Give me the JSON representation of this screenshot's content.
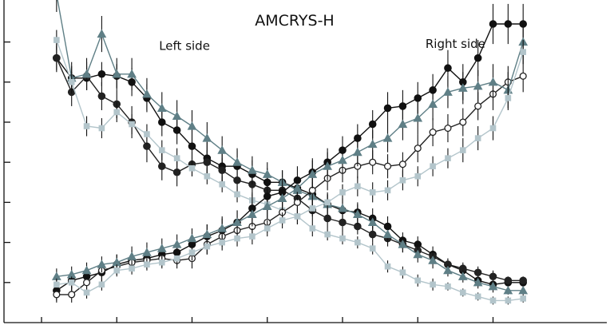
{
  "chart_data": {
    "type": "line",
    "title": "AMCRYS-H",
    "xlabel": "",
    "ylabel": "",
    "grid": false,
    "legend": "none",
    "error_bars": true,
    "x": [
      1,
      2,
      3,
      4,
      5,
      6,
      7,
      8,
      9,
      10,
      11,
      12,
      13,
      14,
      15,
      16,
      17,
      18,
      19,
      20,
      21,
      22,
      23,
      24,
      25,
      26,
      27,
      28,
      29,
      30,
      31,
      32
    ],
    "xlim": [
      -0.5,
      33.5
    ],
    "ylim": [
      0,
      8
    ],
    "x_tick_positions": [
      0,
      5,
      10,
      15,
      20,
      25,
      30
    ],
    "y_tick_positions": [
      1,
      2,
      3,
      4,
      5,
      6,
      7
    ],
    "annotations": [
      {
        "text": "Left side",
        "x": 9.5,
        "y": 6.8
      },
      {
        "text": "Right side",
        "x": 27.5,
        "y": 6.85
      }
    ],
    "series": [
      {
        "side": "left",
        "marker": "filled-circle",
        "color": "#111111",
        "values": [
          6.6,
          6.1,
          6.1,
          6.2,
          6.15,
          6.0,
          5.6,
          5.0,
          4.8,
          4.4,
          4.1,
          3.9,
          3.9,
          3.7,
          3.5,
          3.5,
          3.35,
          3.2,
          2.95,
          2.8,
          2.75,
          2.6,
          2.4,
          2.05,
          1.95,
          1.7,
          1.45,
          1.3,
          1.05,
          0.95,
          1.0,
          1.0
        ],
        "errors": [
          0.3,
          0.3,
          0.3,
          0.3,
          0.3,
          0.35,
          0.35,
          0.35,
          0.35,
          0.4,
          0.4,
          0.4,
          0.4,
          0.35,
          0.35,
          0.3,
          0.3,
          0.3,
          0.3,
          0.25,
          0.25,
          0.25,
          0.25,
          0.2,
          0.2,
          0.2,
          0.15,
          0.15,
          0.15,
          0.1,
          0.1,
          0.1
        ]
      },
      {
        "side": "left",
        "marker": "filled-circle",
        "color": "#222222",
        "values": [
          6.6,
          5.75,
          6.15,
          5.65,
          5.45,
          5.0,
          4.4,
          3.9,
          3.75,
          3.95,
          4.0,
          3.8,
          3.55,
          3.45,
          3.3,
          3.3,
          3.1,
          2.8,
          2.6,
          2.5,
          2.4,
          2.2,
          2.1,
          1.95,
          1.8,
          1.65,
          1.45,
          1.35,
          1.25,
          1.15,
          1.05,
          1.05
        ],
        "errors": [
          0.35,
          0.35,
          0.35,
          0.35,
          0.35,
          0.4,
          0.4,
          0.35,
          0.35,
          0.3,
          0.3,
          0.3,
          0.3,
          0.3,
          0.3,
          0.3,
          0.25,
          0.25,
          0.25,
          0.25,
          0.2,
          0.2,
          0.2,
          0.2,
          0.2,
          0.15,
          0.15,
          0.15,
          0.15,
          0.15,
          0.1,
          0.1
        ]
      },
      {
        "side": "left",
        "marker": "triangle",
        "color": "#5f7f86",
        "values": [
          8.2,
          6.1,
          6.2,
          7.2,
          6.2,
          6.2,
          5.7,
          5.35,
          5.15,
          4.9,
          4.6,
          4.3,
          4.0,
          3.8,
          3.7,
          3.5,
          3.3,
          3.15,
          2.95,
          2.85,
          2.7,
          2.5,
          2.2,
          1.95,
          1.7,
          1.55,
          1.3,
          1.15,
          1.0,
          0.9,
          0.8,
          0.8
        ],
        "errors": [
          0.45,
          0.4,
          0.4,
          0.45,
          0.4,
          0.4,
          0.4,
          0.4,
          0.4,
          0.4,
          0.4,
          0.35,
          0.35,
          0.35,
          0.3,
          0.3,
          0.3,
          0.25,
          0.25,
          0.25,
          0.25,
          0.2,
          0.2,
          0.2,
          0.2,
          0.2,
          0.15,
          0.15,
          0.15,
          0.15,
          0.1,
          0.1
        ]
      },
      {
        "side": "left",
        "marker": "square",
        "color": "#b3c5cb",
        "values": [
          7.05,
          6.0,
          4.9,
          4.85,
          5.25,
          4.95,
          4.7,
          4.3,
          4.1,
          3.85,
          3.65,
          3.45,
          3.2,
          3.05,
          2.95,
          2.8,
          2.65,
          2.35,
          2.2,
          2.1,
          2.0,
          1.85,
          1.4,
          1.25,
          1.05,
          0.95,
          0.9,
          0.75,
          0.65,
          0.55,
          0.55,
          0.6
        ],
        "errors": [
          0.25,
          0.25,
          0.25,
          0.25,
          0.25,
          0.25,
          0.25,
          0.25,
          0.25,
          0.2,
          0.2,
          0.2,
          0.2,
          0.2,
          0.2,
          0.2,
          0.2,
          0.2,
          0.15,
          0.15,
          0.15,
          0.15,
          0.15,
          0.15,
          0.15,
          0.15,
          0.1,
          0.1,
          0.1,
          0.1,
          0.1,
          0.1
        ]
      },
      {
        "side": "right",
        "marker": "filled-circle",
        "color": "#111111",
        "values": [
          0.8,
          1.05,
          1.15,
          1.25,
          1.45,
          1.55,
          1.6,
          1.7,
          1.75,
          1.95,
          2.15,
          2.3,
          2.5,
          2.85,
          3.15,
          3.25,
          3.55,
          3.75,
          4.0,
          4.3,
          4.6,
          4.95,
          5.35,
          5.4,
          5.6,
          5.8,
          6.35,
          6.0,
          6.6,
          7.45,
          7.45,
          7.45
        ],
        "errors": [
          0.25,
          0.25,
          0.25,
          0.25,
          0.25,
          0.25,
          0.25,
          0.25,
          0.3,
          0.3,
          0.3,
          0.3,
          0.3,
          0.35,
          0.35,
          0.35,
          0.35,
          0.35,
          0.35,
          0.35,
          0.35,
          0.35,
          0.4,
          0.4,
          0.4,
          0.4,
          0.45,
          0.45,
          0.45,
          0.5,
          0.5,
          0.5
        ]
      },
      {
        "side": "right",
        "marker": "open-circle",
        "color": "#222222",
        "values": [
          0.7,
          0.7,
          1.0,
          1.3,
          1.4,
          1.5,
          1.55,
          1.6,
          1.55,
          1.6,
          1.95,
          2.15,
          2.3,
          2.4,
          2.5,
          2.75,
          3.0,
          3.3,
          3.6,
          3.8,
          3.9,
          4.0,
          3.9,
          3.95,
          4.35,
          4.75,
          4.85,
          5.0,
          5.4,
          5.7,
          6.0,
          6.15
        ],
        "errors": [
          0.2,
          0.2,
          0.2,
          0.2,
          0.2,
          0.2,
          0.2,
          0.2,
          0.2,
          0.25,
          0.25,
          0.25,
          0.25,
          0.25,
          0.25,
          0.3,
          0.3,
          0.3,
          0.3,
          0.3,
          0.3,
          0.3,
          0.3,
          0.3,
          0.35,
          0.35,
          0.35,
          0.35,
          0.35,
          0.4,
          0.4,
          0.4
        ]
      },
      {
        "side": "right",
        "marker": "triangle",
        "color": "#5f7f86",
        "values": [
          1.15,
          1.2,
          1.3,
          1.45,
          1.5,
          1.65,
          1.75,
          1.85,
          1.95,
          2.1,
          2.2,
          2.35,
          2.5,
          2.7,
          2.9,
          3.1,
          3.35,
          3.7,
          3.9,
          4.05,
          4.25,
          4.45,
          4.6,
          4.95,
          5.1,
          5.45,
          5.75,
          5.85,
          5.9,
          6.0,
          5.8,
          7.0
        ],
        "errors": [
          0.2,
          0.2,
          0.2,
          0.2,
          0.2,
          0.25,
          0.25,
          0.25,
          0.25,
          0.25,
          0.25,
          0.3,
          0.3,
          0.3,
          0.3,
          0.3,
          0.3,
          0.35,
          0.35,
          0.35,
          0.35,
          0.35,
          0.35,
          0.4,
          0.4,
          0.4,
          0.4,
          0.4,
          0.4,
          0.45,
          0.45,
          0.45
        ]
      },
      {
        "side": "right",
        "marker": "square",
        "color": "#b3c5cb",
        "values": [
          0.95,
          1.0,
          0.75,
          0.95,
          1.3,
          1.35,
          1.45,
          1.5,
          1.6,
          1.75,
          1.9,
          2.0,
          2.1,
          2.15,
          2.35,
          2.55,
          2.65,
          2.85,
          3.0,
          3.25,
          3.4,
          3.25,
          3.3,
          3.55,
          3.65,
          3.9,
          4.1,
          4.3,
          4.6,
          4.85,
          5.6,
          6.75
        ],
        "errors": [
          0.15,
          0.15,
          0.15,
          0.15,
          0.15,
          0.15,
          0.15,
          0.15,
          0.15,
          0.2,
          0.2,
          0.2,
          0.2,
          0.2,
          0.2,
          0.2,
          0.2,
          0.2,
          0.2,
          0.2,
          0.25,
          0.25,
          0.25,
          0.25,
          0.25,
          0.25,
          0.25,
          0.3,
          0.3,
          0.3,
          0.3,
          0.3
        ]
      }
    ]
  }
}
